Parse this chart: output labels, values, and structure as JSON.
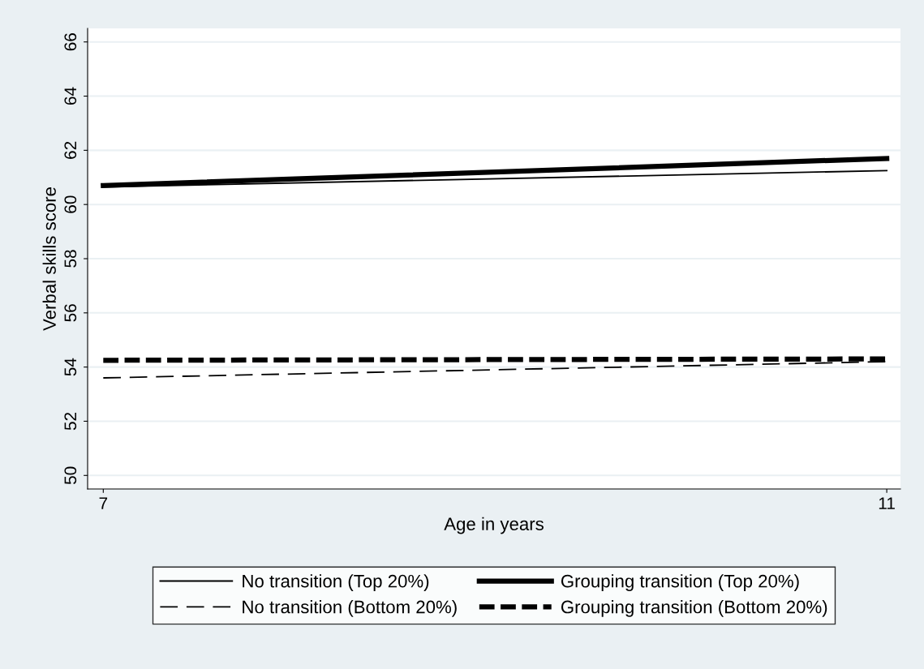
{
  "chart_data": {
    "type": "line",
    "xlabel": "Age in years",
    "ylabel": "Verbal skills score",
    "x": [
      7,
      11
    ],
    "xlim": [
      6.92,
      11.07
    ],
    "xticks": [
      7,
      11
    ],
    "ylim": [
      49.5,
      66.5
    ],
    "yticks": [
      50,
      52,
      54,
      56,
      58,
      60,
      62,
      64,
      66
    ],
    "grid": "y",
    "legend": "bottom",
    "marker": "none",
    "series": [
      {
        "name": "No transition (Top 20%)",
        "color": "#000000",
        "line_style": "solid",
        "values": [
          60.65,
          61.25
        ]
      },
      {
        "name": "Grouping transition (Top 20%)",
        "color": "#000000",
        "line_style": "solid",
        "values": [
          60.7,
          61.7
        ]
      },
      {
        "name": "No transition (Bottom 20%)",
        "color": "#000000",
        "line_style": "dashed",
        "values": [
          53.6,
          54.2
        ]
      },
      {
        "name": "Grouping transition (Bottom 20%)",
        "color": "#000000",
        "line_style": "dashed",
        "values": [
          54.25,
          54.3
        ]
      }
    ]
  }
}
